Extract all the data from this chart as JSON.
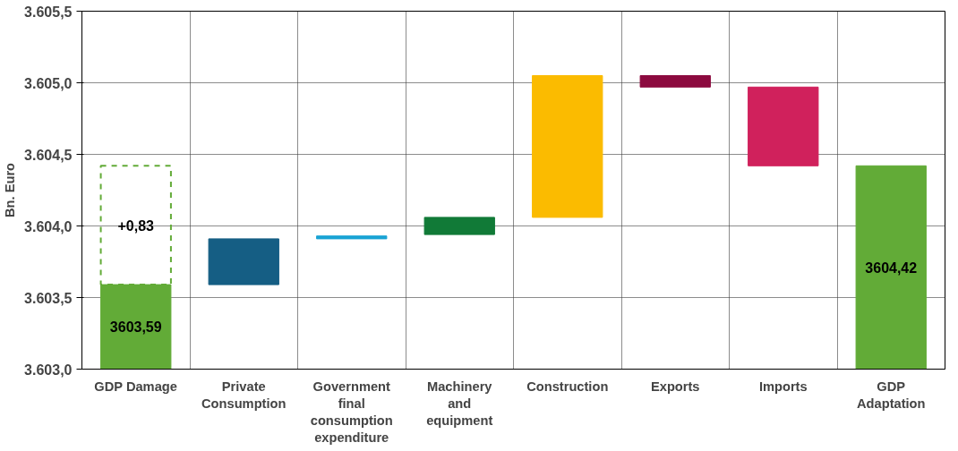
{
  "chart_data": {
    "type": "bar",
    "ylabel": "Bn. Euro",
    "categories": [
      "GDP Damage",
      "Private Consumption",
      "Government final consumption expenditure",
      "Machinery and equipment",
      "Construction",
      "Exports",
      "Imports",
      "GDP Adaptation"
    ],
    "series": [
      {
        "colors": [
          "#62ab37",
          "#155e84",
          "#1aa3d4",
          "#117a37",
          "#fbbb00",
          "#8c0a3f",
          "#d0215c",
          "#62ab37"
        ],
        "base": [
          3603.0,
          3603.59,
          3603.91,
          3603.94,
          3604.06,
          3604.97,
          3604.42,
          3603.0
        ],
        "values": [
          0.59,
          0.32,
          0.02,
          0.12,
          0.99,
          0.08,
          0.55,
          1.42
        ],
        "value_labels": [
          "3603,59",
          null,
          null,
          null,
          null,
          null,
          null,
          "3604,42"
        ]
      },
      {
        "color": "#62ab37",
        "line_style": "dashed",
        "base": [
          3603.59,
          null,
          null,
          null,
          null,
          null,
          null,
          null
        ],
        "values": [
          0.83,
          null,
          null,
          null,
          null,
          null,
          null,
          null
        ],
        "value_labels": [
          "+0,83",
          null,
          null,
          null,
          null,
          null,
          null,
          null
        ]
      }
    ],
    "ylim": [
      3603.0,
      3605.5
    ],
    "yticks": [
      {
        "value": 3603.0,
        "label": "3.603,0"
      },
      {
        "value": 3603.5,
        "label": "3.603,5"
      },
      {
        "value": 3604.0,
        "label": "3.604,0"
      },
      {
        "value": 3604.5,
        "label": "3.604,5"
      },
      {
        "value": 3605.0,
        "label": "3.605,0"
      },
      {
        "value": 3605.5,
        "label": "3.605,5"
      }
    ],
    "grid": true
  }
}
